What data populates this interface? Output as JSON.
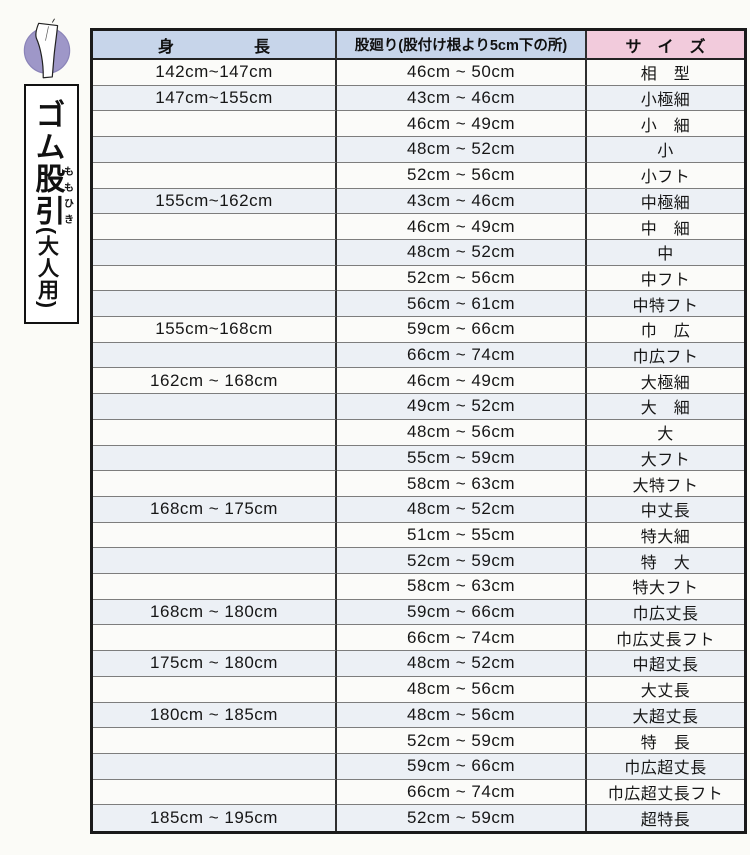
{
  "page": {
    "background": "#fbfbf7"
  },
  "sidebar": {
    "icon_name": "momohiki-pants-icon",
    "icon_circle_color": "#9e97c8",
    "title_part1": "ゴム",
    "ruby1": {
      "base": "股",
      "rt": "もも"
    },
    "ruby2": {
      "base": "引",
      "rt": "ひき"
    },
    "subtitle": "(大人用)"
  },
  "table": {
    "header": {
      "height": "身　　　　　長",
      "girth": "股廻り(股付け根より5cm下の所)",
      "size": "サ　イ　ズ"
    },
    "colors": {
      "header_blue": "#c7d5ea",
      "header_pink": "#f2cbdc",
      "border_dark": "#1a1a1a",
      "row_alt": "#ecf0f5"
    },
    "rows": [
      {
        "height": "142cm~147cm",
        "girth": "46cm ~ 50cm",
        "size": "相　型"
      },
      {
        "height": "147cm~155cm",
        "girth": "43cm ~ 46cm",
        "size": "小極細"
      },
      {
        "height": "",
        "girth": "46cm ~ 49cm",
        "size": "小　細"
      },
      {
        "height": "",
        "girth": "48cm ~ 52cm",
        "size": "小"
      },
      {
        "height": "",
        "girth": "52cm ~ 56cm",
        "size": "小フト"
      },
      {
        "height": "155cm~162cm",
        "girth": "43cm ~ 46cm",
        "size": "中極細"
      },
      {
        "height": "",
        "girth": "46cm ~ 49cm",
        "size": "中　細"
      },
      {
        "height": "",
        "girth": "48cm ~ 52cm",
        "size": "中"
      },
      {
        "height": "",
        "girth": "52cm ~ 56cm",
        "size": "中フト"
      },
      {
        "height": "",
        "girth": "56cm ~ 61cm",
        "size": "中特フト"
      },
      {
        "height": "155cm~168cm",
        "girth": "59cm ~ 66cm",
        "size": "巾　広"
      },
      {
        "height": "",
        "girth": "66cm ~ 74cm",
        "size": "巾広フト"
      },
      {
        "height": "162cm ~ 168cm",
        "girth": "46cm ~ 49cm",
        "size": "大極細"
      },
      {
        "height": "",
        "girth": "49cm ~ 52cm",
        "size": "大　細"
      },
      {
        "height": "",
        "girth": "48cm ~ 56cm",
        "size": "大"
      },
      {
        "height": "",
        "girth": "55cm ~ 59cm",
        "size": "大フト"
      },
      {
        "height": "",
        "girth": "58cm ~ 63cm",
        "size": "大特フト"
      },
      {
        "height": "168cm ~ 175cm",
        "girth": "48cm ~ 52cm",
        "size": "中丈長"
      },
      {
        "height": "",
        "girth": "51cm ~ 55cm",
        "size": "特大細"
      },
      {
        "height": "",
        "girth": "52cm ~ 59cm",
        "size": "特　大"
      },
      {
        "height": "",
        "girth": "58cm ~ 63cm",
        "size": "特大フト"
      },
      {
        "height": "168cm ~ 180cm",
        "girth": "59cm ~ 66cm",
        "size": "巾広丈長"
      },
      {
        "height": "",
        "girth": "66cm ~ 74cm",
        "size": "巾広丈長フト"
      },
      {
        "height": "175cm ~ 180cm",
        "girth": "48cm ~ 52cm",
        "size": "中超丈長"
      },
      {
        "height": "",
        "girth": "48cm ~ 56cm",
        "size": "大丈長"
      },
      {
        "height": "180cm ~ 185cm",
        "girth": "48cm ~ 56cm",
        "size": "大超丈長"
      },
      {
        "height": "",
        "girth": "52cm ~ 59cm",
        "size": "特　長"
      },
      {
        "height": "",
        "girth": "59cm ~ 66cm",
        "size": "巾広超丈長"
      },
      {
        "height": "",
        "girth": "66cm ~ 74cm",
        "size": "巾広超丈長フト"
      },
      {
        "height": "185cm ~ 195cm",
        "girth": "52cm ~ 59cm",
        "size": "超特長"
      }
    ]
  }
}
